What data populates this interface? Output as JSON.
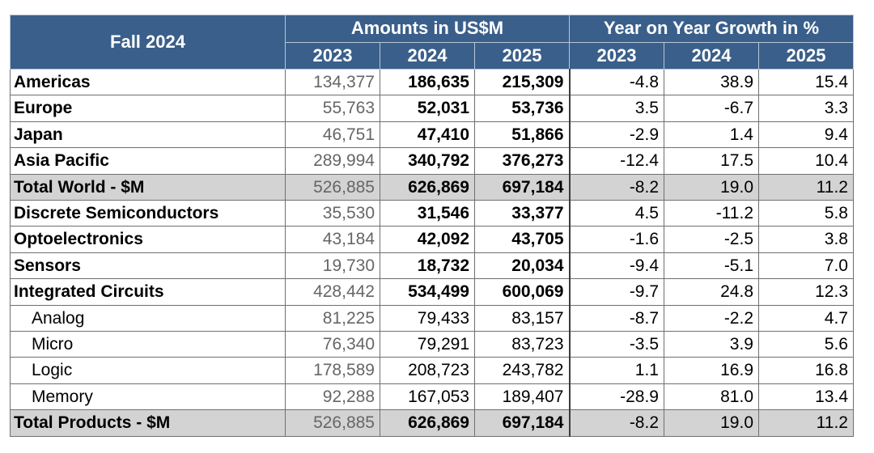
{
  "header": {
    "corner": "Fall 2024",
    "group_amounts": "Amounts in US$M",
    "group_growth": "Year on Year Growth in %",
    "years": [
      "2023",
      "2024",
      "2025",
      "2023",
      "2024",
      "2025"
    ]
  },
  "rows": [
    {
      "label": "Americas",
      "a2023": "134,377",
      "a2024": "186,635",
      "a2025": "215,309",
      "g2023": "-4.8",
      "g2024": "38.9",
      "g2025": "15.4"
    },
    {
      "label": "Europe",
      "a2023": "55,763",
      "a2024": "52,031",
      "a2025": "53,736",
      "g2023": "3.5",
      "g2024": "-6.7",
      "g2025": "3.3"
    },
    {
      "label": "Japan",
      "a2023": "46,751",
      "a2024": "47,410",
      "a2025": "51,866",
      "g2023": "-2.9",
      "g2024": "1.4",
      "g2025": "9.4"
    },
    {
      "label": "Asia Pacific",
      "a2023": "289,994",
      "a2024": "340,792",
      "a2025": "376,273",
      "g2023": "-12.4",
      "g2024": "17.5",
      "g2025": "10.4"
    },
    {
      "label": "Total World - $M",
      "a2023": "526,885",
      "a2024": "626,869",
      "a2025": "697,184",
      "g2023": "-8.2",
      "g2024": "19.0",
      "g2025": "11.2"
    },
    {
      "label": "Discrete Semiconductors",
      "a2023": "35,530",
      "a2024": "31,546",
      "a2025": "33,377",
      "g2023": "4.5",
      "g2024": "-11.2",
      "g2025": "5.8"
    },
    {
      "label": "Optoelectronics",
      "a2023": "43,184",
      "a2024": "42,092",
      "a2025": "43,705",
      "g2023": "-1.6",
      "g2024": "-2.5",
      "g2025": "3.8"
    },
    {
      "label": "Sensors",
      "a2023": "19,730",
      "a2024": "18,732",
      "a2025": "20,034",
      "g2023": "-9.4",
      "g2024": "-5.1",
      "g2025": "7.0"
    },
    {
      "label": "Integrated Circuits",
      "a2023": "428,442",
      "a2024": "534,499",
      "a2025": "600,069",
      "g2023": "-9.7",
      "g2024": "24.8",
      "g2025": "12.3"
    },
    {
      "label": "Analog",
      "a2023": "81,225",
      "a2024": "79,433",
      "a2025": "83,157",
      "g2023": "-8.7",
      "g2024": "-2.2",
      "g2025": "4.7"
    },
    {
      "label": "Micro",
      "a2023": "76,340",
      "a2024": "79,291",
      "a2025": "83,723",
      "g2023": "-3.5",
      "g2024": "3.9",
      "g2025": "5.6"
    },
    {
      "label": "Logic",
      "a2023": "178,589",
      "a2024": "208,723",
      "a2025": "243,782",
      "g2023": "1.1",
      "g2024": "16.9",
      "g2025": "16.8"
    },
    {
      "label": "Memory",
      "a2023": "92,288",
      "a2024": "167,053",
      "a2025": "189,407",
      "g2023": "-28.9",
      "g2024": "81.0",
      "g2025": "13.4"
    },
    {
      "label": "Total Products - $M",
      "a2023": "526,885",
      "a2024": "626,869",
      "a2025": "697,184",
      "g2023": "-8.2",
      "g2024": "19.0",
      "g2025": "11.2"
    }
  ]
}
